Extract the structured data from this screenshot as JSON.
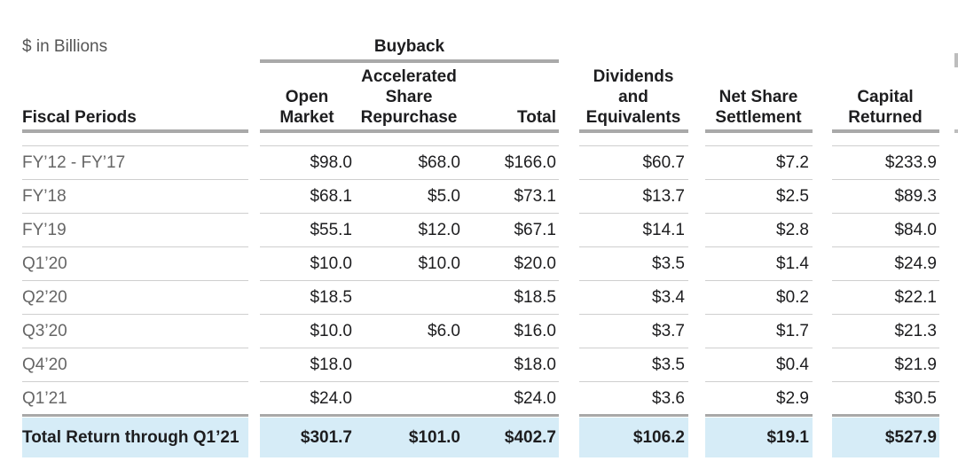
{
  "unit_label": "$ in Billions",
  "group_label": "Buyback",
  "columns": [
    {
      "key": "period",
      "label": [
        "",
        "",
        "Fiscal Periods"
      ]
    },
    {
      "key": "open",
      "label": [
        "",
        "Open",
        "Market"
      ]
    },
    {
      "key": "asr",
      "label": [
        "Accelerated",
        "Share",
        "Repurchase"
      ]
    },
    {
      "key": "total",
      "label": [
        "",
        "",
        "Total"
      ]
    },
    {
      "key": "div",
      "label": [
        "Dividends",
        "and",
        "Equivalents"
      ]
    },
    {
      "key": "nss",
      "label": [
        "",
        "Net Share",
        "Settlement"
      ]
    },
    {
      "key": "cap",
      "label": [
        "",
        "Capital",
        "Returned"
      ]
    }
  ],
  "rows": [
    {
      "period": "FY’12 - FY’17",
      "open": "$98.0",
      "asr": "$68.0",
      "total": "$166.0",
      "div": "$60.7",
      "nss": "$7.2",
      "cap": "$233.9"
    },
    {
      "period": "FY’18",
      "open": "$68.1",
      "asr": "$5.0",
      "total": "$73.1",
      "div": "$13.7",
      "nss": "$2.5",
      "cap": "$89.3"
    },
    {
      "period": "FY’19",
      "open": "$55.1",
      "asr": "$12.0",
      "total": "$67.1",
      "div": "$14.1",
      "nss": "$2.8",
      "cap": "$84.0"
    },
    {
      "period": "Q1’20",
      "open": "$10.0",
      "asr": "$10.0",
      "total": "$20.0",
      "div": "$3.5",
      "nss": "$1.4",
      "cap": "$24.9"
    },
    {
      "period": "Q2’20",
      "open": "$18.5",
      "asr": "",
      "total": "$18.5",
      "div": "$3.4",
      "nss": "$0.2",
      "cap": "$22.1"
    },
    {
      "period": "Q3’20",
      "open": "$10.0",
      "asr": "$6.0",
      "total": "$16.0",
      "div": "$3.7",
      "nss": "$1.7",
      "cap": "$21.3"
    },
    {
      "period": "Q4’20",
      "open": "$18.0",
      "asr": "",
      "total": "$18.0",
      "div": "$3.5",
      "nss": "$0.4",
      "cap": "$21.9"
    },
    {
      "period": "Q1’21",
      "open": "$24.0",
      "asr": "",
      "total": "$24.0",
      "div": "$3.6",
      "nss": "$2.9",
      "cap": "$30.5"
    }
  ],
  "total_row": {
    "period": "Total Return through Q1’21",
    "open": "$301.7",
    "asr": "$101.0",
    "total": "$402.7",
    "div": "$106.2",
    "nss": "$19.1",
    "cap": "$527.9"
  },
  "colors": {
    "header_rule": "#a9a9a9",
    "row_rule": "#cfcfcf",
    "total_fill": "#d6ecf7",
    "label_text": "#666666"
  }
}
